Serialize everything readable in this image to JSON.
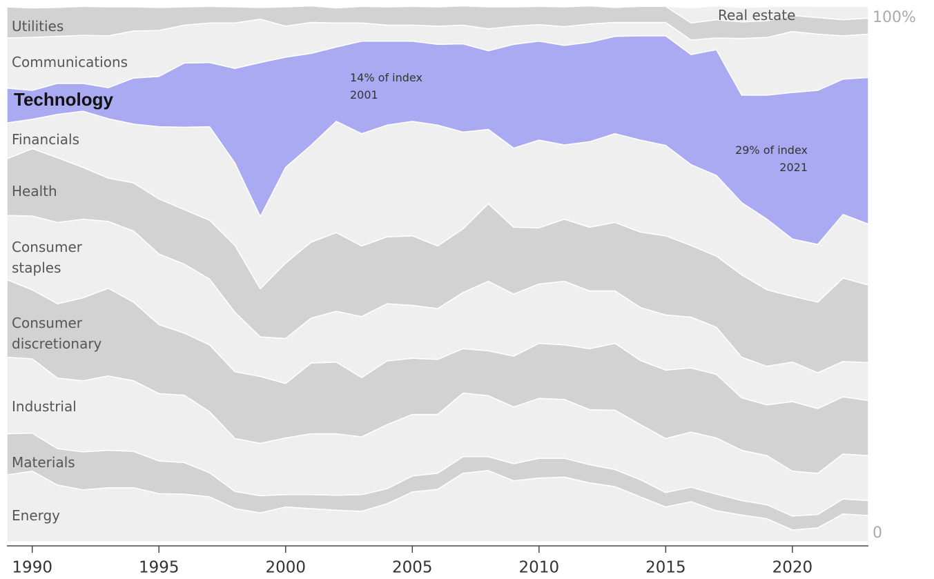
{
  "chart_data": {
    "type": "stacked-area",
    "x": [
      1989,
      1990,
      1991,
      1992,
      1993,
      1994,
      1995,
      1996,
      1997,
      1998,
      1999,
      2000,
      2001,
      2002,
      2003,
      2004,
      2005,
      2006,
      2007,
      2008,
      2009,
      2010,
      2011,
      2012,
      2013,
      2014,
      2015,
      2016,
      2017,
      2018,
      2019,
      2020,
      2021,
      2022,
      2023
    ],
    "xlim": [
      1989,
      2023
    ],
    "xticks": [
      1990,
      1995,
      2000,
      2005,
      2010,
      2015,
      2020
    ],
    "ylim": [
      0,
      100
    ],
    "yticks": [
      {
        "value": 100,
        "label": "100%"
      },
      0
    ],
    "series": [
      {
        "name": "Energy",
        "color": "#efefef",
        "values": [
          12.5,
          13.2,
          10.6,
          9.7,
          10.1,
          10.1,
          9.0,
          8.9,
          8.4,
          6.2,
          5.4,
          6.5,
          6.2,
          5.9,
          5.7,
          7.1,
          9.3,
          9.8,
          12.8,
          13.3,
          11.4,
          11.9,
          12.1,
          11.0,
          10.3,
          8.4,
          6.5,
          7.5,
          5.8,
          5.0,
          4.3,
          2.2,
          2.6,
          5.2,
          4.9
        ]
      },
      {
        "name": "Materials",
        "color": "#d2d2d2",
        "values": [
          7.7,
          7.1,
          6.8,
          7.1,
          7.0,
          6.8,
          6.1,
          5.9,
          4.5,
          3.2,
          3.2,
          2.3,
          2.6,
          2.8,
          3.1,
          2.8,
          3.0,
          3.0,
          3.1,
          2.6,
          3.2,
          3.7,
          3.5,
          3.4,
          3.2,
          3.2,
          2.7,
          2.7,
          3.1,
          2.7,
          2.6,
          2.6,
          2.5,
          2.8,
          2.8
        ]
      },
      {
        "name": "Industrial",
        "color": "#efefef",
        "values": [
          14.3,
          13.9,
          13.2,
          13.3,
          13.9,
          13.2,
          12.6,
          12.6,
          11.4,
          9.9,
          9.8,
          10.6,
          11.4,
          11.5,
          10.8,
          12.0,
          11.5,
          11.0,
          11.9,
          11.4,
          10.6,
          11.2,
          11.0,
          10.3,
          11.1,
          10.3,
          10.1,
          10.3,
          10.5,
          9.4,
          9.2,
          8.4,
          7.7,
          8.4,
          8.4
        ]
      },
      {
        "name": "Consumer discretionary",
        "color": "#d2d2d2",
        "values": [
          14.5,
          12.9,
          13.9,
          15.5,
          16.4,
          14.7,
          12.9,
          11.6,
          12.5,
          12.5,
          12.5,
          10.2,
          13.2,
          13.4,
          11.1,
          11.9,
          10.5,
          10.3,
          8.3,
          8.4,
          9.5,
          10.3,
          10.2,
          11.4,
          12.5,
          12.0,
          12.8,
          12.0,
          11.9,
          9.8,
          9.5,
          13.0,
          12.1,
          10.7,
          10.3
        ]
      },
      {
        "name": "Consumer staples",
        "color": "#efefef",
        "values": [
          12.0,
          13.8,
          15.2,
          14.7,
          12.5,
          13.3,
          13.2,
          12.9,
          12.3,
          11.1,
          7.4,
          8.4,
          8.4,
          9.5,
          11.4,
          10.7,
          9.9,
          9.5,
          10.5,
          13.0,
          11.6,
          11.1,
          11.9,
          10.8,
          9.8,
          9.9,
          10.3,
          9.5,
          8.8,
          7.6,
          7.2,
          7.4,
          6.7,
          6.6,
          7.1
        ]
      },
      {
        "name": "Health",
        "color": "#d2d2d2",
        "values": [
          10.6,
          12.6,
          12.1,
          9.7,
          8.1,
          9.0,
          10.3,
          10.2,
          11.0,
          12.5,
          9.0,
          14.1,
          14.2,
          14.7,
          13.2,
          12.5,
          13.0,
          11.7,
          11.9,
          14.5,
          12.5,
          10.5,
          11.6,
          11.9,
          12.8,
          14.1,
          14.8,
          13.4,
          13.3,
          15.4,
          14.3,
          12.3,
          13.2,
          15.6,
          14.5
        ]
      },
      {
        "name": "Financials",
        "color": "#efefef",
        "values": [
          6.7,
          5.5,
          8.1,
          10.5,
          11.1,
          11.0,
          13.5,
          15.4,
          17.5,
          15.4,
          13.5,
          17.9,
          18.1,
          20.8,
          21.0,
          20.9,
          21.4,
          22.6,
          18.1,
          13.9,
          14.8,
          16.4,
          13.9,
          16.0,
          16.6,
          17.2,
          16.9,
          15.1,
          15.1,
          13.5,
          13.2,
          10.7,
          10.8,
          11.9,
          11.4
        ]
      },
      {
        "name": "Technology",
        "color": "#a9aaf2",
        "values": [
          6.5,
          5.4,
          5.8,
          5.2,
          5.8,
          8.6,
          9.4,
          12.0,
          12.0,
          17.7,
          28.8,
          20.6,
          17.2,
          13.9,
          17.3,
          15.7,
          15.0,
          15.1,
          16.5,
          14.7,
          19.4,
          18.5,
          18.6,
          18.6,
          18.2,
          19.5,
          20.5,
          20.6,
          23.5,
          20.1,
          23.2,
          27.4,
          28.8,
          25.3,
          27.4
        ]
      },
      {
        "name": "Communications",
        "color": "#efefef",
        "values": [
          9.4,
          9.9,
          8.8,
          9.0,
          9.7,
          8.8,
          8.6,
          7.1,
          7.4,
          8.5,
          8.1,
          5.8,
          5.8,
          4.5,
          3.4,
          3.0,
          3.0,
          3.4,
          3.5,
          4.1,
          3.4,
          3.1,
          3.5,
          3.4,
          2.6,
          2.5,
          2.5,
          2.7,
          2.2,
          10.6,
          10.8,
          11.4,
          10.5,
          8.1,
          8.1
        ]
      },
      {
        "name": "Utilities",
        "color": "#d2d2d2",
        "values": [
          5.8,
          5.5,
          5.4,
          5.4,
          5.4,
          4.5,
          4.3,
          3.4,
          3.1,
          3.0,
          2.2,
          3.6,
          3.1,
          2.8,
          3.1,
          3.4,
          3.5,
          3.6,
          3.6,
          4.1,
          3.6,
          3.4,
          3.7,
          3.4,
          2.8,
          3.0,
          3.0,
          3.2,
          3.4,
          3.1,
          3.1,
          3.0,
          3.1,
          3.0,
          3.0
        ]
      },
      {
        "name": "Real estate",
        "color": "#efefef",
        "values": [
          0,
          0,
          0,
          0,
          0,
          0,
          0,
          0,
          0,
          0,
          0,
          0,
          0,
          0,
          0,
          0,
          0,
          0,
          0,
          0,
          0,
          0,
          0,
          0,
          0,
          0,
          0,
          2.8,
          2.6,
          2.7,
          2.6,
          1.8,
          2.1,
          2.5,
          2.2
        ]
      }
    ],
    "annotations": [
      [
        "14% of index",
        "2001"
      ],
      [
        "29% of index",
        "2021"
      ]
    ]
  }
}
